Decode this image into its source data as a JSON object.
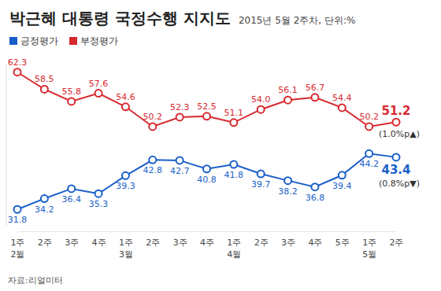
{
  "chart_data": {
    "type": "line",
    "title": "박근혜 대통령 국정수행 지지도",
    "subtitle": "2015년 5월 2주차, 단위:%",
    "source": "자료:리얼미터",
    "categories": [
      "1주\n2월",
      "2주",
      "3주",
      "4주",
      "1주\n3월",
      "2주",
      "3주",
      "4주",
      "1주\n4월",
      "2주",
      "3주",
      "4주",
      "5주",
      "1주\n5월",
      "2주"
    ],
    "series": [
      {
        "name": "긍정평가",
        "color": "#1a5fc9",
        "marker": "circle",
        "annotation": "(0.8%p▼)",
        "values": [
          31.8,
          34.2,
          36.4,
          35.3,
          39.3,
          42.8,
          42.7,
          40.8,
          41.8,
          39.7,
          38.2,
          36.8,
          39.4,
          44.2,
          43.4
        ]
      },
      {
        "name": "부정평가",
        "color": "#d7282f",
        "marker": "circle",
        "annotation": "(1.0%p▲)",
        "values": [
          62.3,
          58.5,
          55.8,
          57.6,
          54.6,
          50.2,
          52.3,
          52.5,
          51.1,
          54.0,
          56.1,
          56.7,
          54.4,
          50.2,
          51.2
        ]
      }
    ],
    "ylim": [
      28,
      64
    ],
    "data_labels": true,
    "tick_labels": "x",
    "grid": false,
    "legend": "top-left"
  }
}
